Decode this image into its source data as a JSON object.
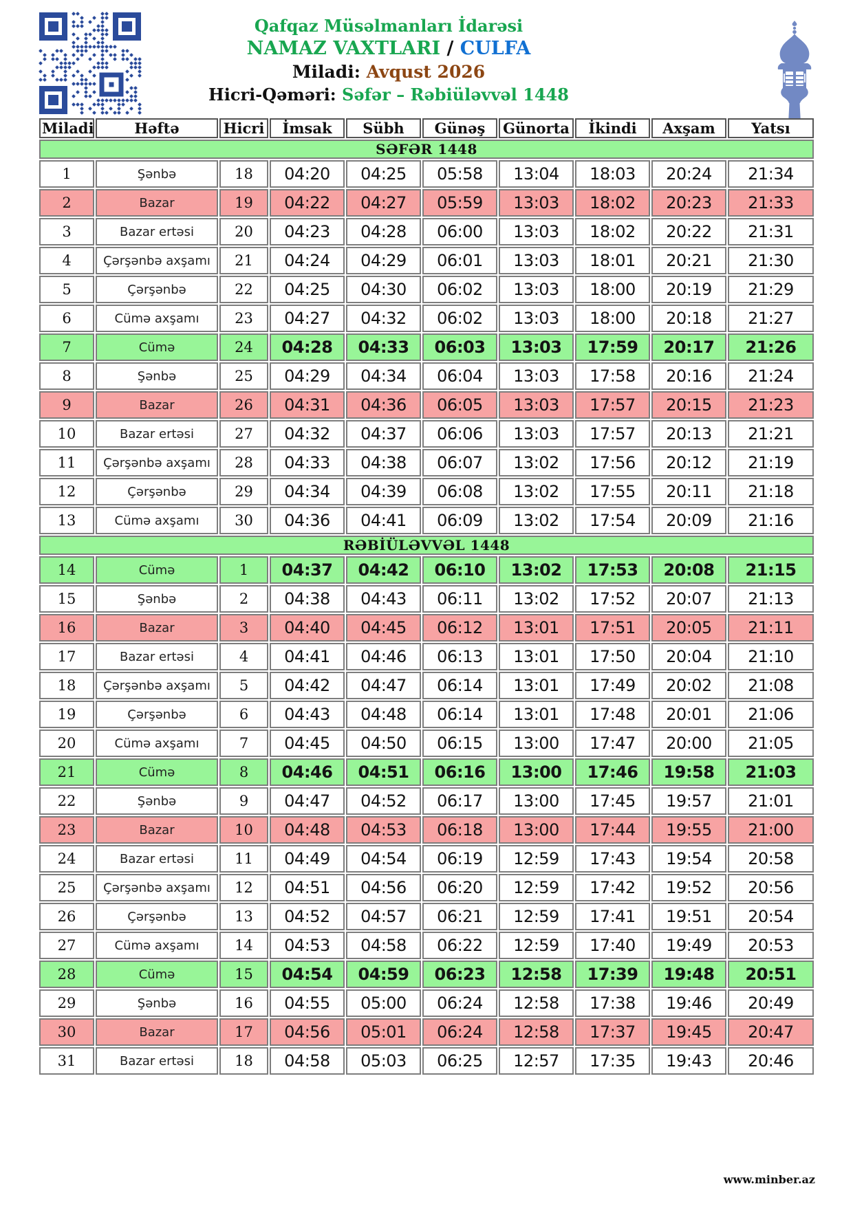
{
  "header": {
    "org": "Qafqaz Müsəlmanları İdarəsi",
    "title": "NAMAZ VAXTLARI",
    "title_sep": "/",
    "city": "CULFA",
    "miladi_label": "Miladi:",
    "miladi_value": "Avqust 2026",
    "hicri_label": "Hicri-Qəməri:",
    "hicri_value": "Səfər – Rəbiüləvvəl 1448"
  },
  "icons": {
    "qr": "qr-code-icon",
    "minaret": "minaret-icon"
  },
  "colors": {
    "title-green": "#18A650",
    "city-blue": "#1170D2",
    "month-brown": "#8C4613",
    "friday-green": "#98F598",
    "sunday-pink": "#F7A3A3",
    "section-green": "#98F598",
    "qr-blue": "#2B4B9B",
    "minaret-blue": "#7289C4"
  },
  "table": {
    "columns": [
      "Miladi",
      "Həftə",
      "Hicri",
      "İmsak",
      "Sübh",
      "Günəş",
      "Günorta",
      "İkindi",
      "Axşam",
      "Yatsı"
    ],
    "sections": [
      {
        "title": "SƏFƏR 1448",
        "rows": [
          {
            "miladi": 1,
            "hefte": "Şənbə",
            "hicri": 18,
            "type": "normal",
            "times": [
              "04:20",
              "04:25",
              "05:58",
              "13:04",
              "18:03",
              "20:24",
              "21:34"
            ]
          },
          {
            "miladi": 2,
            "hefte": "Bazar",
            "hicri": 19,
            "type": "sunday",
            "times": [
              "04:22",
              "04:27",
              "05:59",
              "13:03",
              "18:02",
              "20:23",
              "21:33"
            ]
          },
          {
            "miladi": 3,
            "hefte": "Bazar ertəsi",
            "hicri": 20,
            "type": "normal",
            "times": [
              "04:23",
              "04:28",
              "06:00",
              "13:03",
              "18:02",
              "20:22",
              "21:31"
            ]
          },
          {
            "miladi": 4,
            "hefte": "Çərşənbə axşamı",
            "hicri": 21,
            "type": "normal",
            "times": [
              "04:24",
              "04:29",
              "06:01",
              "13:03",
              "18:01",
              "20:21",
              "21:30"
            ]
          },
          {
            "miladi": 5,
            "hefte": "Çərşənbə",
            "hicri": 22,
            "type": "normal",
            "times": [
              "04:25",
              "04:30",
              "06:02",
              "13:03",
              "18:00",
              "20:19",
              "21:29"
            ]
          },
          {
            "miladi": 6,
            "hefte": "Cümə axşamı",
            "hicri": 23,
            "type": "normal",
            "times": [
              "04:27",
              "04:32",
              "06:02",
              "13:03",
              "18:00",
              "20:18",
              "21:27"
            ]
          },
          {
            "miladi": 7,
            "hefte": "Cümə",
            "hicri": 24,
            "type": "friday",
            "times": [
              "04:28",
              "04:33",
              "06:03",
              "13:03",
              "17:59",
              "20:17",
              "21:26"
            ]
          },
          {
            "miladi": 8,
            "hefte": "Şənbə",
            "hicri": 25,
            "type": "normal",
            "times": [
              "04:29",
              "04:34",
              "06:04",
              "13:03",
              "17:58",
              "20:16",
              "21:24"
            ]
          },
          {
            "miladi": 9,
            "hefte": "Bazar",
            "hicri": 26,
            "type": "sunday",
            "times": [
              "04:31",
              "04:36",
              "06:05",
              "13:03",
              "17:57",
              "20:15",
              "21:23"
            ]
          },
          {
            "miladi": 10,
            "hefte": "Bazar ertəsi",
            "hicri": 27,
            "type": "normal",
            "times": [
              "04:32",
              "04:37",
              "06:06",
              "13:03",
              "17:57",
              "20:13",
              "21:21"
            ]
          },
          {
            "miladi": 11,
            "hefte": "Çərşənbə axşamı",
            "hicri": 28,
            "type": "normal",
            "times": [
              "04:33",
              "04:38",
              "06:07",
              "13:02",
              "17:56",
              "20:12",
              "21:19"
            ]
          },
          {
            "miladi": 12,
            "hefte": "Çərşənbə",
            "hicri": 29,
            "type": "normal",
            "times": [
              "04:34",
              "04:39",
              "06:08",
              "13:02",
              "17:55",
              "20:11",
              "21:18"
            ]
          },
          {
            "miladi": 13,
            "hefte": "Cümə axşamı",
            "hicri": 30,
            "type": "normal",
            "times": [
              "04:36",
              "04:41",
              "06:09",
              "13:02",
              "17:54",
              "20:09",
              "21:16"
            ]
          }
        ]
      },
      {
        "title": "RƏBİÜLƏVVƏL 1448",
        "rows": [
          {
            "miladi": 14,
            "hefte": "Cümə",
            "hicri": 1,
            "type": "friday",
            "times": [
              "04:37",
              "04:42",
              "06:10",
              "13:02",
              "17:53",
              "20:08",
              "21:15"
            ]
          },
          {
            "miladi": 15,
            "hefte": "Şənbə",
            "hicri": 2,
            "type": "normal",
            "times": [
              "04:38",
              "04:43",
              "06:11",
              "13:02",
              "17:52",
              "20:07",
              "21:13"
            ]
          },
          {
            "miladi": 16,
            "hefte": "Bazar",
            "hicri": 3,
            "type": "sunday",
            "times": [
              "04:40",
              "04:45",
              "06:12",
              "13:01",
              "17:51",
              "20:05",
              "21:11"
            ]
          },
          {
            "miladi": 17,
            "hefte": "Bazar ertəsi",
            "hicri": 4,
            "type": "normal",
            "times": [
              "04:41",
              "04:46",
              "06:13",
              "13:01",
              "17:50",
              "20:04",
              "21:10"
            ]
          },
          {
            "miladi": 18,
            "hefte": "Çərşənbə axşamı",
            "hicri": 5,
            "type": "normal",
            "times": [
              "04:42",
              "04:47",
              "06:14",
              "13:01",
              "17:49",
              "20:02",
              "21:08"
            ]
          },
          {
            "miladi": 19,
            "hefte": "Çərşənbə",
            "hicri": 6,
            "type": "normal",
            "times": [
              "04:43",
              "04:48",
              "06:14",
              "13:01",
              "17:48",
              "20:01",
              "21:06"
            ]
          },
          {
            "miladi": 20,
            "hefte": "Cümə axşamı",
            "hicri": 7,
            "type": "normal",
            "times": [
              "04:45",
              "04:50",
              "06:15",
              "13:00",
              "17:47",
              "20:00",
              "21:05"
            ]
          },
          {
            "miladi": 21,
            "hefte": "Cümə",
            "hicri": 8,
            "type": "friday",
            "times": [
              "04:46",
              "04:51",
              "06:16",
              "13:00",
              "17:46",
              "19:58",
              "21:03"
            ]
          },
          {
            "miladi": 22,
            "hefte": "Şənbə",
            "hicri": 9,
            "type": "normal",
            "times": [
              "04:47",
              "04:52",
              "06:17",
              "13:00",
              "17:45",
              "19:57",
              "21:01"
            ]
          },
          {
            "miladi": 23,
            "hefte": "Bazar",
            "hicri": 10,
            "type": "sunday",
            "times": [
              "04:48",
              "04:53",
              "06:18",
              "13:00",
              "17:44",
              "19:55",
              "21:00"
            ]
          },
          {
            "miladi": 24,
            "hefte": "Bazar ertəsi",
            "hicri": 11,
            "type": "normal",
            "times": [
              "04:49",
              "04:54",
              "06:19",
              "12:59",
              "17:43",
              "19:54",
              "20:58"
            ]
          },
          {
            "miladi": 25,
            "hefte": "Çərşənbə axşamı",
            "hicri": 12,
            "type": "normal",
            "times": [
              "04:51",
              "04:56",
              "06:20",
              "12:59",
              "17:42",
              "19:52",
              "20:56"
            ]
          },
          {
            "miladi": 26,
            "hefte": "Çərşənbə",
            "hicri": 13,
            "type": "normal",
            "times": [
              "04:52",
              "04:57",
              "06:21",
              "12:59",
              "17:41",
              "19:51",
              "20:54"
            ]
          },
          {
            "miladi": 27,
            "hefte": "Cümə axşamı",
            "hicri": 14,
            "type": "normal",
            "times": [
              "04:53",
              "04:58",
              "06:22",
              "12:59",
              "17:40",
              "19:49",
              "20:53"
            ]
          },
          {
            "miladi": 28,
            "hefte": "Cümə",
            "hicri": 15,
            "type": "friday",
            "times": [
              "04:54",
              "04:59",
              "06:23",
              "12:58",
              "17:39",
              "19:48",
              "20:51"
            ]
          },
          {
            "miladi": 29,
            "hefte": "Şənbə",
            "hicri": 16,
            "type": "normal",
            "times": [
              "04:55",
              "05:00",
              "06:24",
              "12:58",
              "17:38",
              "19:46",
              "20:49"
            ]
          },
          {
            "miladi": 30,
            "hefte": "Bazar",
            "hicri": 17,
            "type": "sunday",
            "times": [
              "04:56",
              "05:01",
              "06:24",
              "12:58",
              "17:37",
              "19:45",
              "20:47"
            ]
          },
          {
            "miladi": 31,
            "hefte": "Bazar ertəsi",
            "hicri": 18,
            "type": "normal",
            "times": [
              "04:58",
              "05:03",
              "06:25",
              "12:57",
              "17:35",
              "19:43",
              "20:46"
            ]
          }
        ]
      }
    ]
  },
  "footer": {
    "website": "www.minber.az"
  }
}
